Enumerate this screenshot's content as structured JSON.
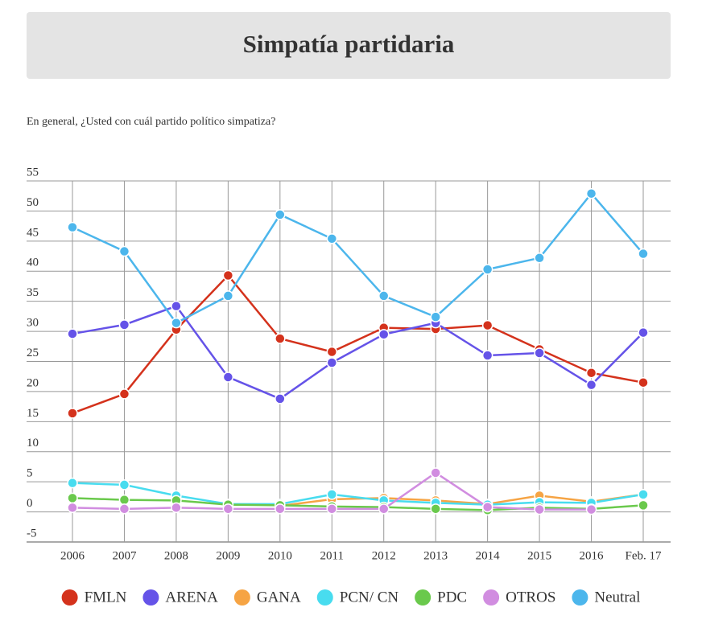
{
  "chart_data": {
    "type": "line",
    "title": "Simpatía partidaria",
    "subtitle": "En general, ¿Usted con cuál partido político simpatiza?",
    "categories": [
      "2006",
      "2007",
      "2008",
      "2009",
      "2010",
      "2011",
      "2012",
      "2013",
      "2014",
      "2015",
      "2016",
      "Feb. 17"
    ],
    "ylim": [
      -5,
      55
    ],
    "yticks": [
      -5,
      0,
      5,
      10,
      15,
      20,
      25,
      30,
      35,
      40,
      45,
      50,
      55
    ],
    "grid": true,
    "legend": "bottom",
    "series": [
      {
        "name": "FMLN",
        "color": "#d4321c",
        "values": [
          16.4,
          19.6,
          30.3,
          39.3,
          28.8,
          26.6,
          30.6,
          30.4,
          31.0,
          27.0,
          23.1,
          21.5
        ]
      },
      {
        "name": "ARENA",
        "color": "#6553e8",
        "values": [
          29.6,
          31.1,
          34.2,
          22.4,
          18.8,
          24.8,
          29.5,
          31.4,
          26.0,
          26.4,
          21.1,
          29.8
        ]
      },
      {
        "name": "GANA",
        "color": "#f6a444",
        "values": [
          null,
          null,
          null,
          null,
          1.0,
          2.1,
          2.3,
          1.9,
          1.3,
          2.7,
          1.7,
          2.9
        ]
      },
      {
        "name": "PCN/ CN",
        "color": "#48dcef",
        "values": [
          4.8,
          4.5,
          2.7,
          1.3,
          1.3,
          2.9,
          1.9,
          1.5,
          1.2,
          1.6,
          1.5,
          2.9
        ]
      },
      {
        "name": "PDC",
        "color": "#6ac94c",
        "values": [
          2.3,
          2.0,
          1.9,
          1.2,
          1.1,
          0.9,
          0.8,
          0.5,
          0.3,
          0.7,
          0.5,
          1.1
        ]
      },
      {
        "name": "OTROS",
        "color": "#d18de0",
        "values": [
          0.7,
          0.5,
          0.7,
          0.5,
          0.5,
          0.5,
          0.5,
          6.5,
          0.8,
          0.4,
          0.4,
          null
        ]
      },
      {
        "name": "Neutral",
        "color": "#4cb6ec",
        "values": [
          47.3,
          43.3,
          31.4,
          35.9,
          49.4,
          45.4,
          35.9,
          32.4,
          40.3,
          42.2,
          52.9,
          42.9
        ]
      }
    ]
  }
}
